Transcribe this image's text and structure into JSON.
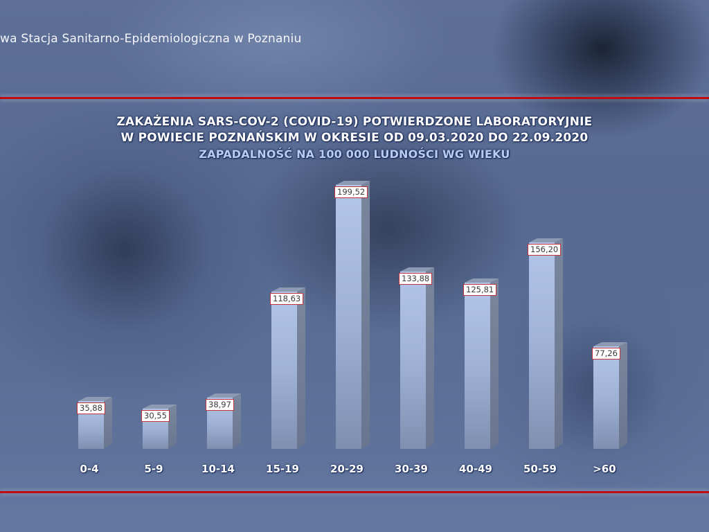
{
  "header": {
    "institution_text": "wa Stacja Sanitarno-Epidemiologiczna w Poznaniu"
  },
  "colors": {
    "rule": "#c20a12",
    "background": "#5a6e96",
    "bar_front": "#a6b9de",
    "bar_side": "#737f98",
    "label_border": "#c0343b",
    "subtitle": "#b7cdf3"
  },
  "chart_data": {
    "type": "bar",
    "title": "ZAKAŻENIA SARS-COV-2 (COVID-19) POTWIERDZONE LABORATORYJNIE",
    "title_line2": "W POWIECIE POZNAŃSKIM W OKRESIE OD 09.03.2020 DO 22.09.2020",
    "subtitle": "ZAPADALNOŚĆ NA 100 000 LUDNOŚCI WG WIEKU",
    "xlabel": "",
    "ylabel": "",
    "categories": [
      "0-4",
      "5-9",
      "10-14",
      "15-19",
      "20-29",
      "30-39",
      "40-49",
      "50-59",
      ">60"
    ],
    "values": [
      35.88,
      30.55,
      38.97,
      118.63,
      199.52,
      133.88,
      125.81,
      156.2,
      77.26
    ],
    "value_labels": [
      "35,88",
      "30,55",
      "38,97",
      "118,63",
      "199,52",
      "133,88",
      "125,81",
      "156,20",
      "77,26"
    ],
    "grid": false,
    "legend": "none",
    "style": "3d-columns"
  }
}
